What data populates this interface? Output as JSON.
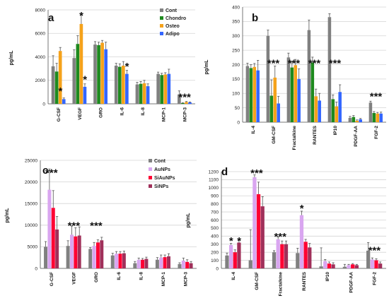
{
  "chart_data": [
    {
      "type": "bar",
      "panel": "a",
      "ylabel": "pg/mL",
      "ylim": [
        0,
        8000
      ],
      "yticks": [
        0,
        2000,
        4000,
        6000,
        8000
      ],
      "categories": [
        "G-CSF",
        "VEGF",
        "GRO",
        "IL-6",
        "IL-8",
        "MCP-1",
        "MCP-3"
      ],
      "series": [
        {
          "name": "Cont",
          "color": "#808080",
          "values": [
            3200,
            3900,
            5050,
            3250,
            1650,
            2550,
            800
          ],
          "errors": [
            900,
            700,
            250,
            200,
            180,
            150,
            300
          ]
        },
        {
          "name": "Chondro",
          "color": "#1e8a1e",
          "values": [
            2750,
            5100,
            5000,
            3150,
            1700,
            2450,
            60
          ],
          "errors": [
            700,
            700,
            250,
            250,
            200,
            150,
            30
          ]
        },
        {
          "name": "Osteo",
          "color": "#f5a21b",
          "values": [
            4500,
            6800,
            5200,
            3250,
            1750,
            2500,
            150
          ],
          "errors": [
            300,
            800,
            200,
            350,
            250,
            150,
            50
          ]
        },
        {
          "name": "Adipo",
          "color": "#3366ff",
          "values": [
            400,
            1450,
            4650,
            2550,
            1500,
            2550,
            120
          ],
          "errors": [
            100,
            250,
            600,
            300,
            200,
            400,
            40
          ]
        }
      ],
      "annotations": [
        {
          "category": "G-CSF",
          "text": "*"
        },
        {
          "category": "VEGF",
          "text": "*"
        },
        {
          "category": "VEGF",
          "text": "*"
        },
        {
          "category": "IL-6",
          "text": "*"
        },
        {
          "category": "MCP-3",
          "text": "***"
        }
      ],
      "legend": "top-right"
    },
    {
      "type": "bar",
      "panel": "b",
      "ylabel": "pg/mL",
      "ylim": [
        0,
        400
      ],
      "yticks": [
        0,
        50,
        100,
        150,
        200,
        250,
        300,
        350,
        400
      ],
      "categories": [
        "IL-4",
        "GM-CSF",
        "Fractalkine",
        "RANTES",
        "IP10",
        "PDGF-AA",
        "FGF-2"
      ],
      "series": [
        {
          "name": "Cont",
          "color": "#808080",
          "values": [
            195,
            300,
            225,
            320,
            365,
            15,
            68
          ],
          "errors": [
            10,
            20,
            15,
            35,
            12,
            5,
            5
          ]
        },
        {
          "name": "Chondro",
          "color": "#1e8a1e",
          "values": [
            188,
            92,
            190,
            208,
            80,
            18,
            32
          ],
          "errors": [
            12,
            55,
            20,
            18,
            15,
            5,
            5
          ]
        },
        {
          "name": "Osteo",
          "color": "#f5a21b",
          "values": [
            192,
            155,
            198,
            90,
            55,
            5,
            30
          ],
          "errors": [
            12,
            40,
            20,
            25,
            15,
            3,
            4
          ]
        },
        {
          "name": "Adipo",
          "color": "#3366ff",
          "values": [
            180,
            65,
            150,
            75,
            105,
            10,
            30
          ],
          "errors": [
            35,
            25,
            35,
            25,
            25,
            3,
            5
          ]
        }
      ],
      "annotations": [
        {
          "category": "GM-CSF",
          "text": "***"
        },
        {
          "category": "Fractalkine",
          "text": "***"
        },
        {
          "category": "RANTES",
          "text": "***"
        },
        {
          "category": "IP10",
          "text": "***"
        },
        {
          "category": "FGF-2",
          "text": "***"
        }
      ]
    },
    {
      "type": "bar",
      "panel": "c",
      "ylabel": "pg/mL",
      "ylim": [
        0,
        25000
      ],
      "yticks": [
        0,
        5000,
        10000,
        15000,
        20000,
        25000
      ],
      "categories": [
        "G-CSF",
        "VEGF",
        "GRO",
        "IL-6",
        "IL-8",
        "MCP-1",
        "MCP-3"
      ],
      "series": [
        {
          "name": "Cont",
          "color": "#808080",
          "values": [
            5000,
            5200,
            4500,
            3000,
            1200,
            2000,
            1000
          ],
          "errors": [
            1200,
            1200,
            300,
            500,
            400,
            500,
            300
          ]
        },
        {
          "name": "AuNPs",
          "color": "#d9a6f0",
          "values": [
            18200,
            7800,
            5200,
            3400,
            2000,
            2500,
            1800
          ],
          "errors": [
            4800,
            2000,
            800,
            500,
            400,
            600,
            600
          ]
        },
        {
          "name": "SiAuNPs",
          "color": "#ff0033",
          "values": [
            14000,
            7400,
            6000,
            3400,
            2000,
            2600,
            1500
          ],
          "errors": [
            4000,
            2000,
            600,
            500,
            300,
            500,
            500
          ]
        },
        {
          "name": "SiNPs",
          "color": "#a0305a",
          "values": [
            9000,
            7600,
            6500,
            3500,
            2200,
            2800,
            1200
          ],
          "errors": [
            3000,
            2000,
            700,
            500,
            400,
            600,
            400
          ]
        }
      ],
      "annotations": [
        {
          "category": "G-CSF",
          "text": "***"
        },
        {
          "category": "VEGF",
          "text": "***"
        },
        {
          "category": "GRO",
          "text": "***"
        }
      ],
      "legend": "top-right"
    },
    {
      "type": "bar",
      "panel": "d",
      "ylabel": "pg/mL",
      "ylim": [
        0,
        1200
      ],
      "yticks": [
        0,
        100,
        200,
        300,
        400,
        500,
        600,
        700,
        800,
        900,
        1000,
        1100,
        1200
      ],
      "categories": [
        "IL-4",
        "GM-CSF",
        "Fractalkine",
        "RANTES",
        "IP10",
        "PDGF-AA",
        "FGF-2"
      ],
      "series": [
        {
          "name": "Cont",
          "color": "#808080",
          "values": [
            160,
            100,
            200,
            190,
            25,
            20,
            220
          ],
          "errors": [
            30,
            380,
            20,
            60,
            230,
            30,
            100
          ]
        },
        {
          "name": "AuNPs",
          "color": "#d9a6f0",
          "values": [
            290,
            1130,
            360,
            660,
            90,
            40,
            110
          ],
          "errors": [
            20,
            30,
            30,
            50,
            20,
            10,
            20
          ]
        },
        {
          "name": "SiAuNPs",
          "color": "#ff0033",
          "values": [
            200,
            920,
            300,
            330,
            60,
            50,
            100
          ],
          "errors": [
            30,
            150,
            40,
            30,
            20,
            10,
            20
          ]
        },
        {
          "name": "SiNPs",
          "color": "#a0305a",
          "values": [
            320,
            770,
            300,
            260,
            50,
            40,
            60
          ],
          "errors": [
            40,
            120,
            40,
            50,
            20,
            10,
            20
          ]
        }
      ],
      "annotations": [
        {
          "category": "IL-4",
          "text": "*"
        },
        {
          "category": "IL-4",
          "text": "*"
        },
        {
          "category": "GM-CSF",
          "text": "***"
        },
        {
          "category": "Fractalkine",
          "text": "***"
        },
        {
          "category": "RANTES",
          "text": "*"
        },
        {
          "category": "FGF-2",
          "text": "***"
        }
      ]
    }
  ]
}
